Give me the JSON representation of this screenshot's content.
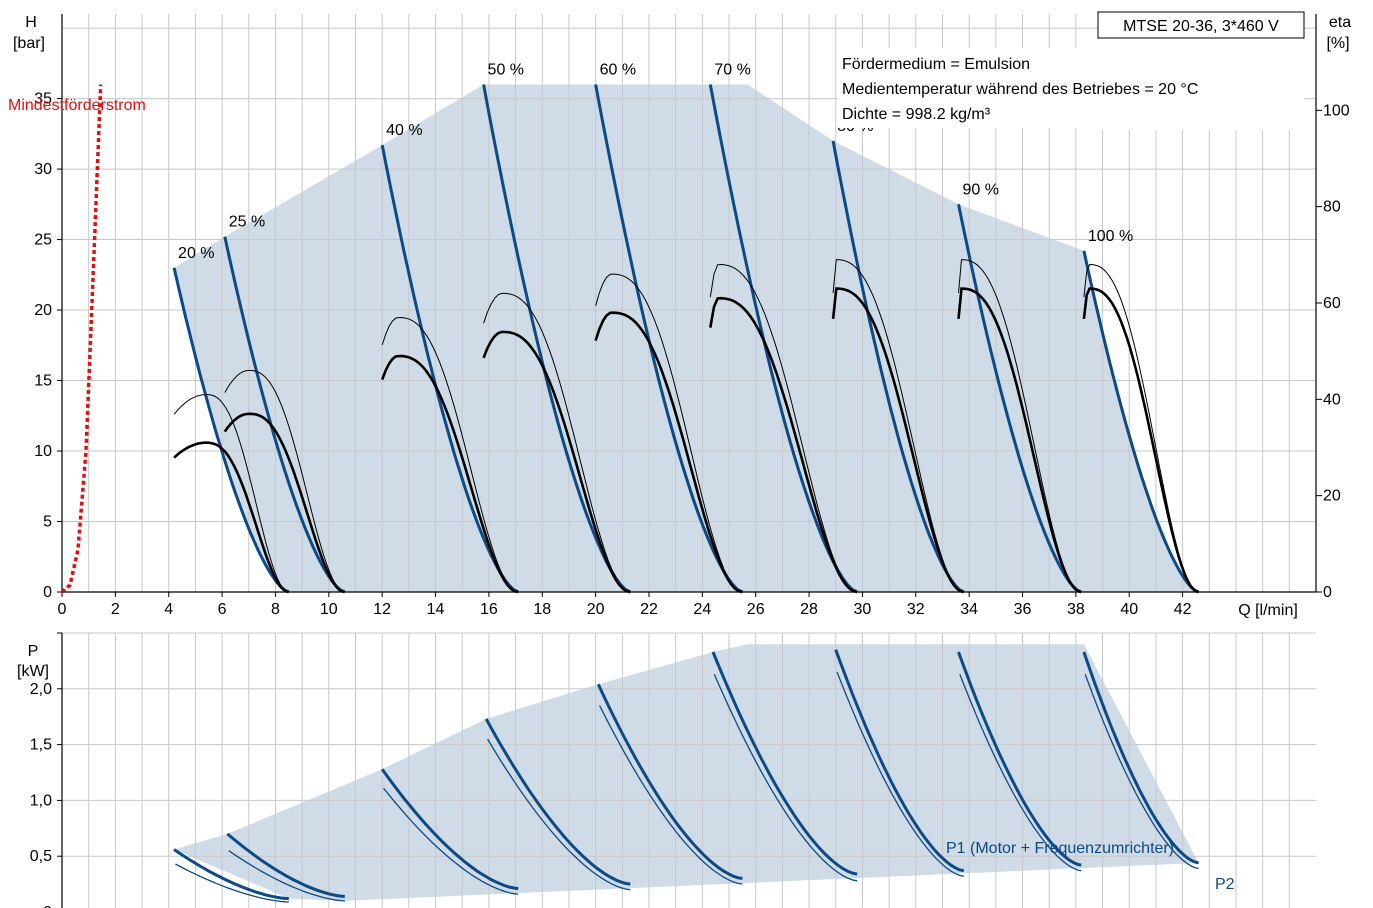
{
  "pump_label": "MTSE 20-36, 3*460 V",
  "info_lines": [
    "Fördermedium = Emulsion",
    "Medientemperatur während des Betriebes = 20 °C",
    "Dichte = 998.2 kg/m³"
  ],
  "min_flow_label": "Mindestförderstrom",
  "colors": {
    "area": "#cfdbe6",
    "curve": "#0b4a86",
    "eta": "#000000",
    "minflow": "#e01010",
    "grid": "#c8c8c8"
  },
  "chart_data": [
    {
      "type": "line",
      "panel": "head-efficiency",
      "xlabel": "Q [l/min]",
      "ylabel": "H\n[bar]",
      "y2label": "eta\n[%]",
      "xlim": [
        0,
        47
      ],
      "ylim": [
        0,
        41
      ],
      "y2lim": [
        0,
        120
      ],
      "x_ticks": [
        0,
        2,
        4,
        6,
        8,
        10,
        12,
        14,
        16,
        18,
        20,
        22,
        24,
        26,
        28,
        30,
        32,
        34,
        36,
        38,
        40,
        42
      ],
      "y_ticks": [
        "0",
        "5",
        "10",
        "15",
        "20",
        "25",
        "30",
        "35"
      ],
      "y2_ticks": [
        "0",
        "20",
        "40",
        "60",
        "80",
        "100"
      ],
      "grid": true,
      "min_flow_curve": [
        [
          0,
          0
        ],
        [
          0.3,
          0.5
        ],
        [
          0.6,
          3
        ],
        [
          0.9,
          10
        ],
        [
          1.2,
          24
        ],
        [
          1.45,
          36
        ]
      ],
      "speed_curves": [
        {
          "label": "20 %",
          "q_start": 4.2,
          "h_start": 23.0,
          "q_end": 8.5
        },
        {
          "label": "25 %",
          "q_start": 6.1,
          "h_start": 25.2,
          "q_end": 10.6
        },
        {
          "label": "40 %",
          "q_start": 12.0,
          "h_start": 31.7,
          "q_end": 17.1
        },
        {
          "label": "50 %",
          "q_start": 15.8,
          "h_start": 36.0,
          "q_end": 21.3
        },
        {
          "label": "60 %",
          "q_start": 20.0,
          "h_start": 36.0,
          "q_end": 25.5
        },
        {
          "label": "70 %",
          "q_start": 24.3,
          "h_start": 36.0,
          "q_end": 29.8
        },
        {
          "label": "80 %",
          "q_start": 28.9,
          "h_start": 32.0,
          "q_end": 33.8
        },
        {
          "label": "90 %",
          "q_start": 33.6,
          "h_start": 27.5,
          "q_end": 38.2
        },
        {
          "label": "100 %",
          "q_start": 38.3,
          "h_start": 24.2,
          "q_end": 42.6
        }
      ],
      "envelope": [
        [
          4.2,
          23.0
        ],
        [
          6.1,
          25.2
        ],
        [
          12.0,
          31.7
        ],
        [
          15.8,
          36.0
        ],
        [
          25.7,
          36.0
        ],
        [
          28.9,
          32.0
        ],
        [
          33.6,
          27.5
        ],
        [
          38.3,
          24.2
        ],
        [
          42.6,
          0
        ],
        [
          8.5,
          0
        ]
      ],
      "eta_curves": [
        {
          "q_start": 4.2,
          "q_end": 8.5,
          "q_peak": 5.4,
          "thin_peak": 41,
          "thick_peak": 31
        },
        {
          "q_start": 6.1,
          "q_end": 10.6,
          "q_peak": 7.0,
          "thin_peak": 46,
          "thick_peak": 37
        },
        {
          "q_start": 12.0,
          "q_end": 17.1,
          "q_peak": 12.6,
          "thin_peak": 57,
          "thick_peak": 49
        },
        {
          "q_start": 15.8,
          "q_end": 21.3,
          "q_peak": 16.5,
          "thin_peak": 62,
          "thick_peak": 54
        },
        {
          "q_start": 20.0,
          "q_end": 25.5,
          "q_peak": 20.6,
          "thin_peak": 66,
          "thick_peak": 58
        },
        {
          "q_start": 24.3,
          "q_end": 29.8,
          "q_peak": 24.6,
          "thin_peak": 68,
          "thick_peak": 61
        },
        {
          "q_start": 28.9,
          "q_end": 33.8,
          "q_peak": 29.0,
          "thin_peak": 69,
          "thick_peak": 63
        },
        {
          "q_start": 33.6,
          "q_end": 38.2,
          "q_peak": 33.7,
          "thin_peak": 69,
          "thick_peak": 63
        },
        {
          "q_start": 38.3,
          "q_end": 42.6,
          "q_peak": 38.5,
          "thin_peak": 68,
          "thick_peak": 63
        }
      ]
    },
    {
      "type": "line",
      "panel": "power",
      "ylabel": "P\n[kW]",
      "ylim": [
        0,
        2.5
      ],
      "y_ticks": [
        "0",
        "0,5",
        "1,0",
        "1,5",
        "2,0"
      ],
      "y_tick_values": [
        0,
        0.5,
        1.0,
        1.5,
        2.0
      ],
      "grid": true,
      "p1_label": "P1 (Motor + Frequenzumrichter)",
      "p2_label": "P2",
      "power_curves": [
        {
          "q_start": 4.2,
          "q_end": 8.5,
          "p1_start": 0.56,
          "p1_end": 0.12,
          "p2_start": 0.43,
          "p2_end": 0.09
        },
        {
          "q_start": 6.2,
          "q_end": 10.6,
          "p1_start": 0.7,
          "p1_end": 0.14,
          "p2_start": 0.55,
          "p2_end": 0.1
        },
        {
          "q_start": 12.0,
          "q_end": 17.1,
          "p1_start": 1.28,
          "p1_end": 0.21,
          "p2_start": 1.11,
          "p2_end": 0.16
        },
        {
          "q_start": 15.9,
          "q_end": 21.3,
          "p1_start": 1.73,
          "p1_end": 0.25,
          "p2_start": 1.55,
          "p2_end": 0.2
        },
        {
          "q_start": 20.1,
          "q_end": 25.5,
          "p1_start": 2.04,
          "p1_end": 0.3,
          "p2_start": 1.85,
          "p2_end": 0.25
        },
        {
          "q_start": 24.4,
          "q_end": 29.8,
          "p1_start": 2.33,
          "p1_end": 0.34,
          "p2_start": 2.13,
          "p2_end": 0.28
        },
        {
          "q_start": 29.0,
          "q_end": 33.8,
          "p1_start": 2.35,
          "p1_end": 0.37,
          "p2_start": 2.15,
          "p2_end": 0.32
        },
        {
          "q_start": 33.6,
          "q_end": 38.2,
          "p1_start": 2.33,
          "p1_end": 0.42,
          "p2_start": 2.13,
          "p2_end": 0.37
        },
        {
          "q_start": 38.3,
          "q_end": 42.6,
          "p1_start": 2.33,
          "p1_end": 0.44,
          "p2_start": 2.13,
          "p2_end": 0.39
        }
      ],
      "envelope": [
        [
          4.2,
          0.56
        ],
        [
          6.2,
          0.7
        ],
        [
          12.0,
          1.28
        ],
        [
          15.9,
          1.73
        ],
        [
          20.1,
          2.04
        ],
        [
          24.4,
          2.33
        ],
        [
          25.7,
          2.4
        ],
        [
          38.3,
          2.4
        ],
        [
          42.6,
          0.44
        ],
        [
          10.6,
          0.1
        ],
        [
          8.5,
          0.12
        ]
      ]
    }
  ]
}
